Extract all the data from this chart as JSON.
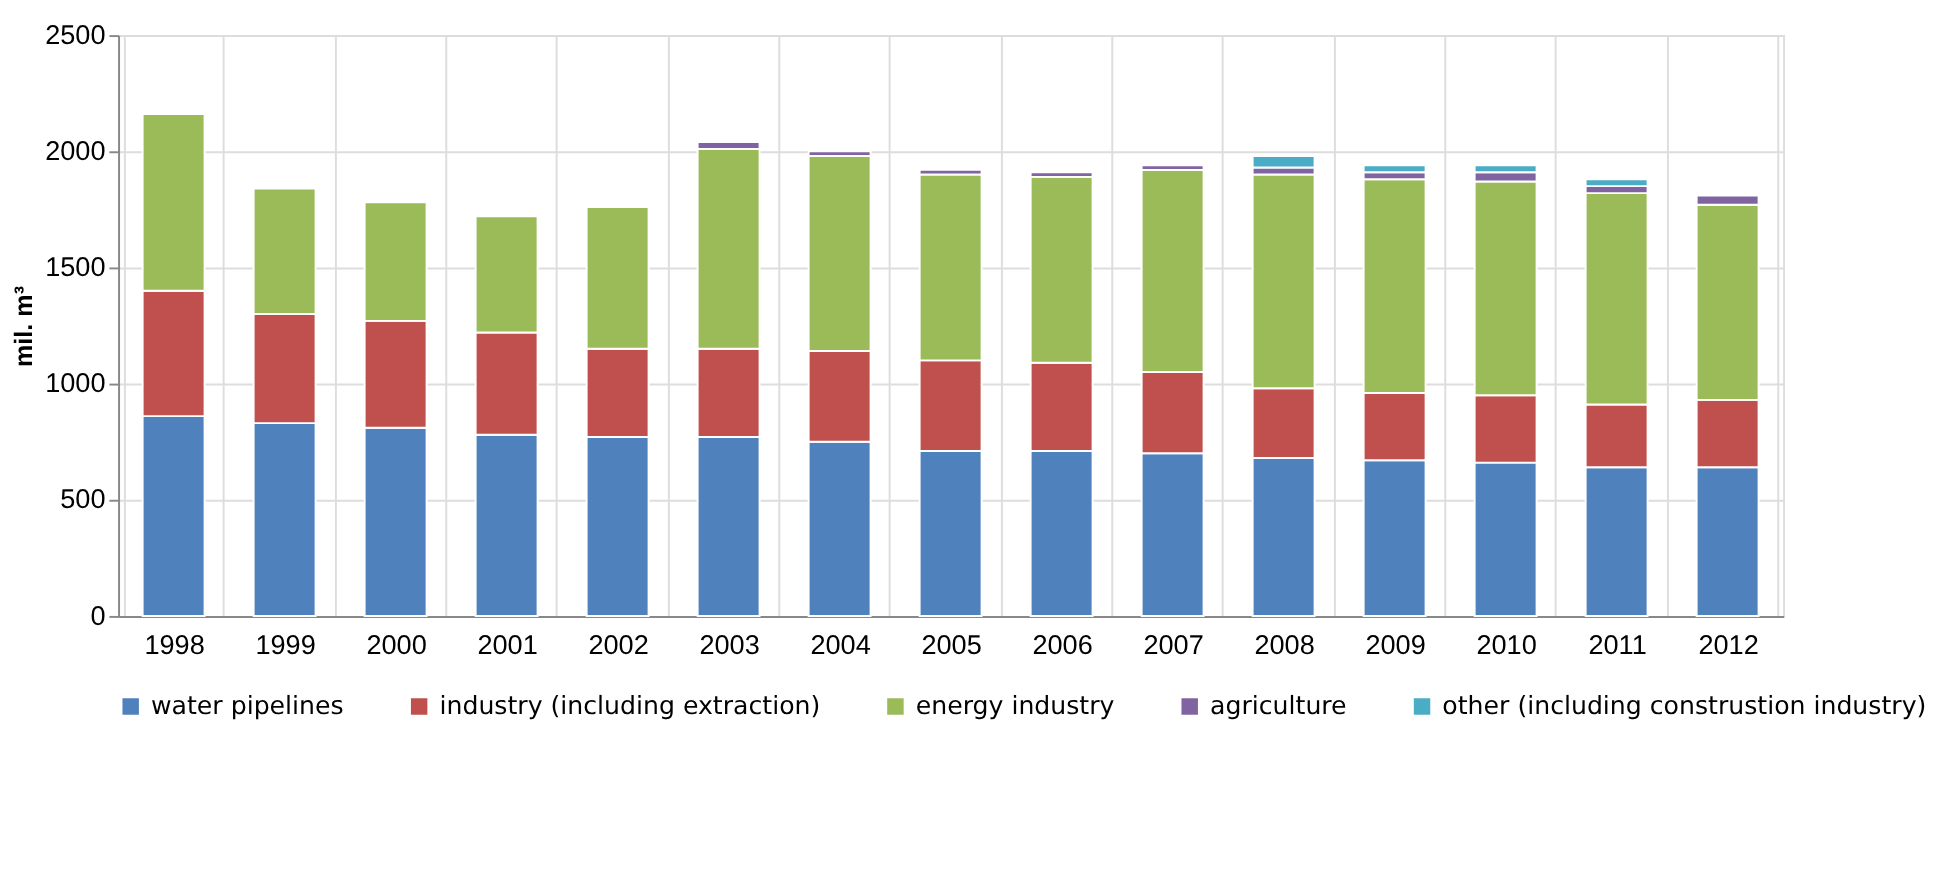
{
  "chart_data": {
    "type": "bar",
    "stacked": true,
    "ylabel": "mil. m³",
    "categories": [
      "1998",
      "1999",
      "2000",
      "2001",
      "2002",
      "2003",
      "2004",
      "2005",
      "2006",
      "2007",
      "2008",
      "2009",
      "2010",
      "2011",
      "2012"
    ],
    "series": [
      {
        "name": "water pipelines",
        "color": "#4f81bd",
        "values": [
          860,
          830,
          810,
          780,
          770,
          770,
          750,
          710,
          710,
          700,
          680,
          670,
          660,
          640,
          640
        ]
      },
      {
        "name": "industry (including extraction)",
        "color": "#c0504d",
        "values": [
          540,
          470,
          460,
          440,
          380,
          380,
          390,
          390,
          380,
          350,
          300,
          290,
          290,
          270,
          290
        ]
      },
      {
        "name": "energy industry",
        "color": "#9bbb59",
        "values": [
          760,
          540,
          510,
          500,
          610,
          860,
          840,
          800,
          800,
          870,
          920,
          920,
          920,
          910,
          840
        ]
      },
      {
        "name": "agriculture",
        "color": "#8064a2",
        "values": [
          0,
          0,
          0,
          0,
          0,
          30,
          20,
          20,
          20,
          20,
          30,
          30,
          40,
          30,
          40
        ]
      },
      {
        "name": "other (including construstion industry)",
        "color": "#4bacc6",
        "values": [
          0,
          0,
          0,
          0,
          0,
          0,
          0,
          0,
          0,
          0,
          50,
          30,
          30,
          30,
          0
        ]
      }
    ],
    "ylim": [
      0,
      2500
    ],
    "yticks": [
      0,
      500,
      1000,
      1500,
      2000,
      2500
    ],
    "grid": true,
    "legend": "bottom"
  }
}
